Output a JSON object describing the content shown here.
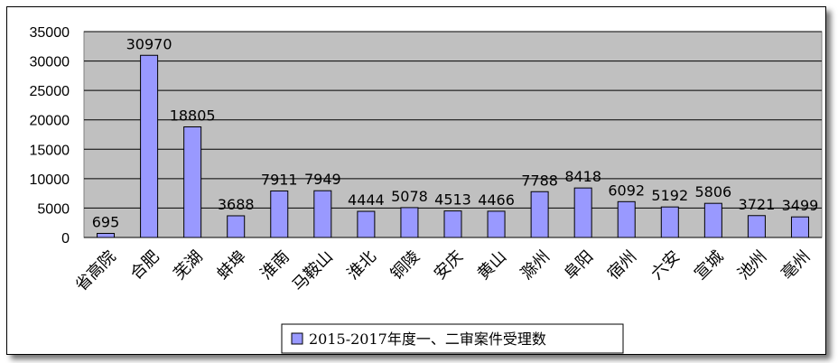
{
  "chart_data": {
    "type": "bar",
    "categories": [
      "省高院",
      "合肥",
      "芜湖",
      "蚌埠",
      "淮南",
      "马鞍山",
      "淮北",
      "铜陵",
      "安庆",
      "黄山",
      "滁州",
      "阜阳",
      "宿州",
      "六安",
      "宣城",
      "池州",
      "亳州"
    ],
    "series": [
      {
        "name": "2015-2017年度一、二审案件受理数",
        "values": [
          695,
          30970,
          18805,
          3688,
          7911,
          7949,
          4444,
          5078,
          4513,
          4466,
          7788,
          8418,
          6092,
          5192,
          5806,
          3721,
          3499
        ]
      }
    ],
    "ylim": [
      0,
      35000
    ],
    "yticks": [
      "0",
      "5000",
      "10000",
      "15000",
      "20000",
      "25000",
      "30000",
      "35000"
    ],
    "grid": true,
    "legend_position": "bottom",
    "colors": {
      "bar": "#9999ff",
      "plot_bg": "#c0c0c0",
      "bar_edge": "#000000"
    }
  }
}
